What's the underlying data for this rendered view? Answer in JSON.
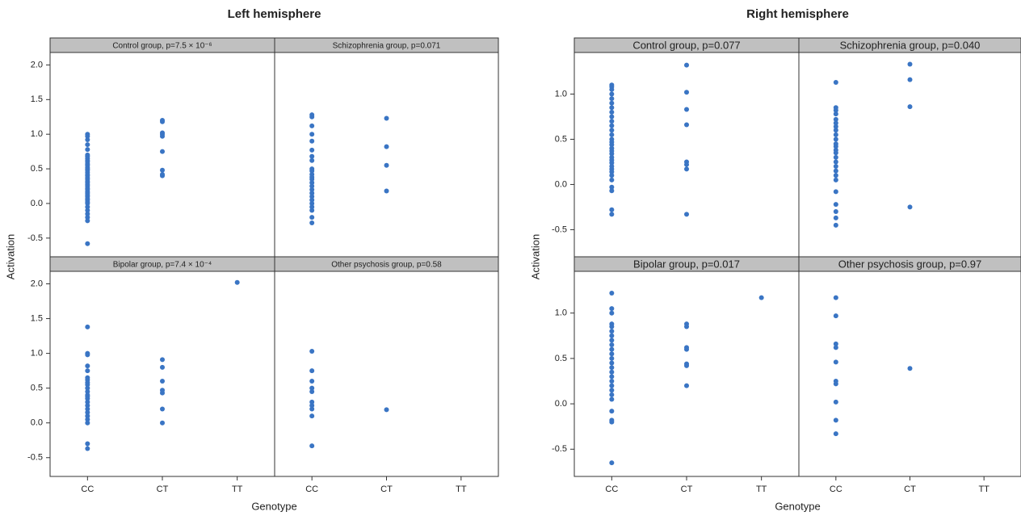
{
  "chart_data": [
    {
      "type": "scatter",
      "title": "Left hemisphere",
      "x_label": "Genotype",
      "y_label": "Activation",
      "categories": [
        "CC",
        "CT",
        "TT"
      ],
      "color": "#3a75c4",
      "ylim": [
        -0.77,
        2.18
      ],
      "yticks": [
        -0.5,
        {
          "value": 0,
          "label": "0.0"
        },
        0.5,
        {
          "value": 1,
          "label": "1.0"
        },
        1.5,
        {
          "value": 2,
          "label": "2.0"
        }
      ],
      "panels": [
        {
          "title": "Control group, p=7.5 × 10⁻⁶",
          "values": [
            [
              1.0,
              0.97,
              0.92,
              0.85,
              0.78,
              0.7,
              0.68,
              0.65,
              0.62,
              0.6,
              0.57,
              0.55,
              0.52,
              0.5,
              0.48,
              0.45,
              0.42,
              0.4,
              0.37,
              0.35,
              0.32,
              0.3,
              0.27,
              0.25,
              0.22,
              0.2,
              0.17,
              0.15,
              0.12,
              0.1,
              0.07,
              0.05,
              0.02,
              0.0,
              -0.05,
              -0.1,
              -0.15,
              -0.2,
              -0.25,
              -0.58
            ],
            [
              1.2,
              1.18,
              1.02,
              1.0,
              0.97,
              0.75,
              0.48,
              0.42,
              0.4
            ],
            []
          ]
        },
        {
          "title": "Schizophrenia group, p=0.071",
          "values": [
            [
              1.28,
              1.25,
              1.12,
              1.0,
              0.9,
              0.77,
              0.68,
              0.62,
              0.5,
              0.47,
              0.42,
              0.38,
              0.35,
              0.3,
              0.25,
              0.2,
              0.15,
              0.1,
              0.05,
              0.0,
              -0.05,
              -0.1,
              -0.2,
              -0.28
            ],
            [
              1.23,
              0.82,
              0.55,
              0.18
            ],
            []
          ]
        },
        {
          "title": "Bipolar group, p=7.4 × 10⁻⁴",
          "values": [
            [
              1.38,
              1.0,
              0.98,
              0.82,
              0.75,
              0.65,
              0.62,
              0.58,
              0.55,
              0.5,
              0.45,
              0.4,
              0.38,
              0.35,
              0.3,
              0.25,
              0.2,
              0.15,
              0.1,
              0.05,
              0.0,
              -0.3,
              -0.37
            ],
            [
              0.91,
              0.8,
              0.6,
              0.47,
              0.43,
              0.2,
              0.0
            ],
            [
              2.02
            ]
          ]
        },
        {
          "title": "Other psychosis group, p=0.58",
          "values": [
            [
              1.03,
              0.75,
              0.6,
              0.5,
              0.45,
              0.3,
              0.25,
              0.2,
              0.1,
              -0.33
            ],
            [
              0.19
            ],
            []
          ]
        }
      ]
    },
    {
      "type": "scatter",
      "title": "Right hemisphere",
      "x_label": "Genotype",
      "y_label": "Activation",
      "categories": [
        "CC",
        "CT",
        "TT"
      ],
      "color": "#3a75c4",
      "ylim": [
        -0.8,
        1.46
      ],
      "yticks": [
        -0.5,
        {
          "value": 0,
          "label": "0.0"
        },
        0.5,
        {
          "value": 1,
          "label": "1.0"
        }
      ],
      "panels": [
        {
          "title": "Control group, p=0.077",
          "values": [
            [
              1.1,
              1.08,
              1.05,
              1.0,
              0.95,
              0.9,
              0.85,
              0.8,
              0.75,
              0.7,
              0.65,
              0.6,
              0.55,
              0.5,
              0.47,
              0.44,
              0.4,
              0.37,
              0.34,
              0.3,
              0.27,
              0.24,
              0.2,
              0.17,
              0.14,
              0.1,
              0.05,
              -0.03,
              -0.07,
              -0.28,
              -0.33
            ],
            [
              1.32,
              1.02,
              0.83,
              0.66,
              0.25,
              0.22,
              0.17,
              -0.33
            ],
            []
          ]
        },
        {
          "title": "Schizophrenia group, p=0.040",
          "values": [
            [
              1.13,
              0.85,
              0.82,
              0.78,
              0.72,
              0.68,
              0.64,
              0.6,
              0.55,
              0.5,
              0.45,
              0.42,
              0.38,
              0.35,
              0.3,
              0.25,
              0.2,
              0.15,
              0.1,
              0.05,
              -0.08,
              -0.22,
              -0.3,
              -0.37,
              -0.45
            ],
            [
              1.33,
              1.16,
              0.86,
              -0.25
            ],
            []
          ]
        },
        {
          "title": "Bipolar group, p=0.017",
          "values": [
            [
              1.22,
              1.05,
              1.0,
              0.88,
              0.85,
              0.8,
              0.75,
              0.7,
              0.65,
              0.6,
              0.55,
              0.5,
              0.45,
              0.4,
              0.35,
              0.3,
              0.25,
              0.2,
              0.15,
              0.1,
              0.05,
              -0.08,
              -0.18,
              -0.2,
              -0.65
            ],
            [
              0.88,
              0.85,
              0.62,
              0.6,
              0.44,
              0.42,
              0.2
            ],
            [
              1.17
            ]
          ]
        },
        {
          "title": "Other psychosis group, p=0.97",
          "values": [
            [
              1.17,
              0.97,
              0.66,
              0.62,
              0.46,
              0.25,
              0.22,
              0.02,
              -0.18,
              -0.33
            ],
            [
              0.39
            ],
            []
          ]
        }
      ]
    }
  ]
}
